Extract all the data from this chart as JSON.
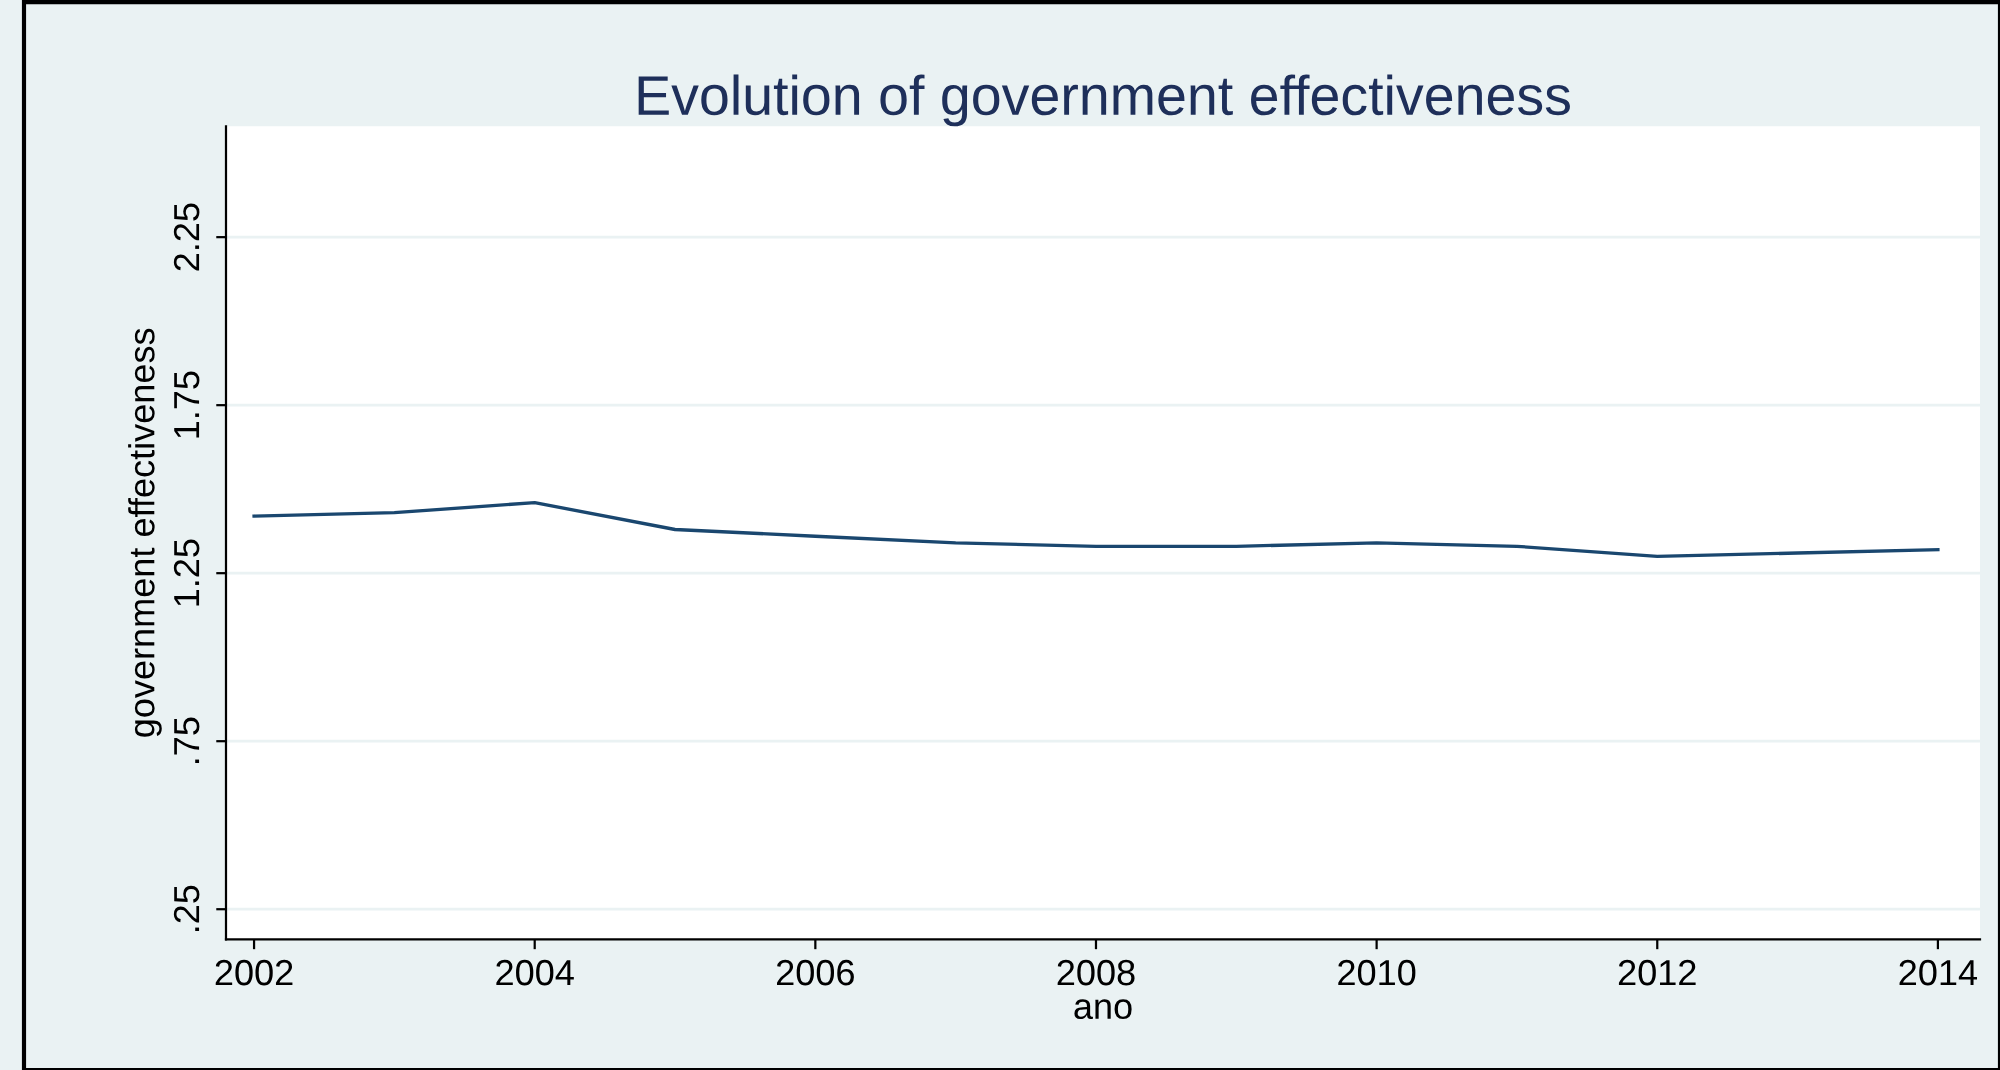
{
  "chart_data": {
    "type": "line",
    "title": "Evolution of government effectiveness",
    "xlabel": "ano",
    "ylabel": "government effectiveness",
    "x": [
      2002,
      2003,
      2004,
      2005,
      2006,
      2007,
      2008,
      2009,
      2010,
      2011,
      2012,
      2013,
      2014
    ],
    "series": [
      {
        "color": "#1a476f",
        "values": [
          1.42,
          1.43,
          1.46,
          1.38,
          1.36,
          1.34,
          1.33,
          1.33,
          1.34,
          1.33,
          1.3,
          1.31,
          1.32
        ]
      }
    ],
    "xlim": [
      2001.8,
      2014.3
    ],
    "xticks": [
      2002,
      2004,
      2006,
      2008,
      2010,
      2012,
      2014
    ],
    "ylim": [
      0.16,
      2.58
    ],
    "yticks": [
      {
        "value": 0.25,
        "label": ".25"
      },
      {
        "value": 0.75,
        "label": ".75"
      },
      1.25,
      1.75,
      2.25
    ],
    "grid": "y",
    "legend": false,
    "marker": "none",
    "line_style": "solid"
  }
}
